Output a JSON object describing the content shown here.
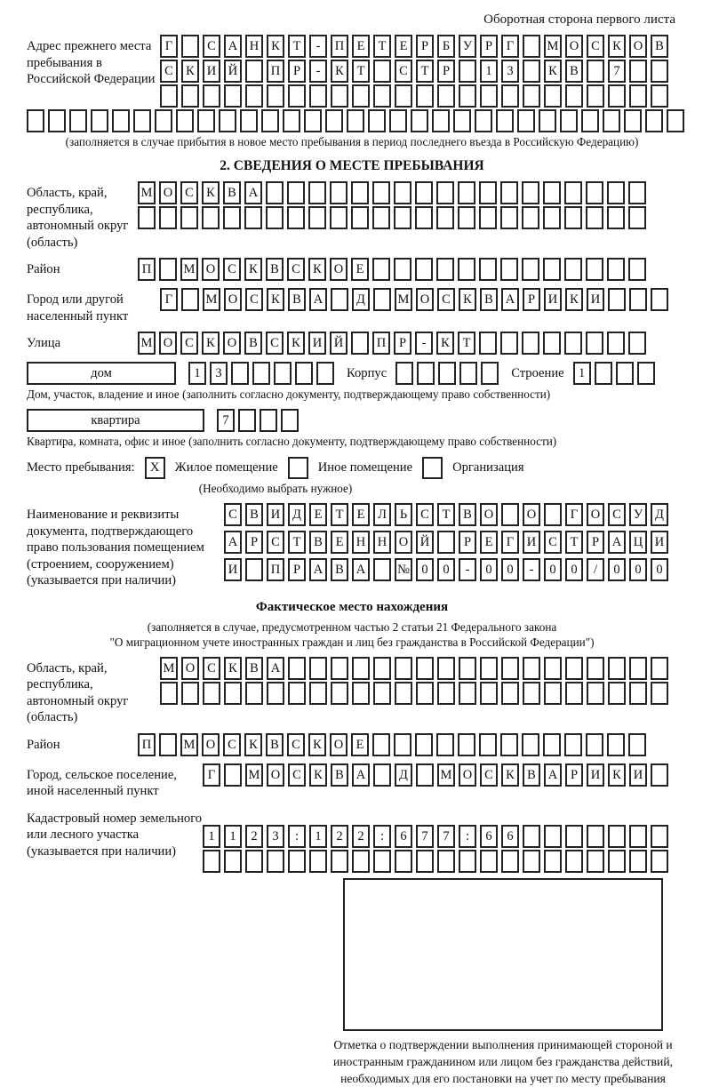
{
  "page": {
    "side_note": "Оборотная сторона первого листа"
  },
  "colors": {
    "line": "#222222",
    "text": "#111111",
    "background": "#ffffff"
  },
  "prev_address": {
    "label": "Адрес прежнего места пребывания в Российской Федерации",
    "rows": [
      {
        "len": 24,
        "text": "Г САНКТ-ПЕТЕРБУРГ МОСКОВ"
      },
      {
        "len": 24,
        "text": "СКИЙ ПР-КТ СТР 13 КВ 7"
      },
      {
        "len": 24,
        "text": ""
      },
      {
        "len": 31,
        "text": ""
      }
    ],
    "note": "(заполняется в случае прибытия в новое место пребывания в период последнего въезда в Российскую Федерацию)"
  },
  "section2": {
    "title": "2. СВЕДЕНИЯ О МЕСТЕ ПРЕБЫВАНИЯ",
    "region": {
      "label": "Область, край, республика, автономный округ (область)",
      "rows": [
        {
          "len": 24,
          "text": "МОСКВА"
        },
        {
          "len": 24,
          "text": ""
        }
      ]
    },
    "district": {
      "label": "Район",
      "rows": [
        {
          "len": 24,
          "text": "П МОСКВСКОЕ"
        }
      ]
    },
    "city": {
      "label": "Город или другой населенный пункт",
      "rows": [
        {
          "len": 24,
          "text": "Г МОСКВА Д МОСКВАРИКИ"
        }
      ]
    },
    "street": {
      "label": "Улица",
      "rows": [
        {
          "len": 24,
          "text": "МОСКОВСКИЙ ПР-КТ"
        }
      ]
    },
    "house": {
      "box_label": "дом",
      "cells": {
        "len": 7,
        "text": "13"
      },
      "korpus_label": "Корпус",
      "korpus_cells": {
        "len": 5,
        "text": ""
      },
      "stroenie_label": "Строение",
      "stroenie_cells": {
        "len": 4,
        "text": "1"
      }
    },
    "house_note": "Дом, участок, владение и иное (заполнить согласно документу, подтверждающему право собственности)",
    "flat": {
      "box_label": "квартира",
      "cells": {
        "len": 4,
        "text": "7"
      }
    },
    "flat_note": "Квартира, комната, офис и иное (заполнить согласно документу, подтверждающему право собственности)",
    "stay_type": {
      "label": "Место пребывания:",
      "options": [
        {
          "label": "Жилое помещение",
          "checked": true,
          "mark": "X"
        },
        {
          "label": "Иное помещение",
          "checked": false,
          "mark": ""
        },
        {
          "label": "Организация",
          "checked": false,
          "mark": ""
        }
      ],
      "note": "(Необходимо выбрать нужное)"
    },
    "document": {
      "label": "Наименование и реквизиты документа, подтверждающего право пользования помещением (строением, сооружением) (указывается при наличии)",
      "rows": [
        {
          "len": 21,
          "text": "СВИДЕТЕЛЬСТВО О ГОСУД"
        },
        {
          "len": 21,
          "text": "АРСТВЕННОЙ РЕГИСТРАЦИ"
        },
        {
          "len": 21,
          "text": "И ПРАВА №00-00-00/000"
        }
      ]
    }
  },
  "actual_location": {
    "title": "Фактическое место нахождения",
    "note_line1": "(заполняется в случае, предусмотренном частью 2 статьи 21 Федерального закона",
    "note_line2": "\"О миграционном учете иностранных граждан и лиц без гражданства в Российской Федерации\")",
    "region": {
      "label": "Область, край, республика, автономный округ (область)",
      "rows": [
        {
          "len": 24,
          "text": "МОСКВА"
        },
        {
          "len": 24,
          "text": ""
        }
      ]
    },
    "district": {
      "label": "Район",
      "rows": [
        {
          "len": 24,
          "text": "П МОСКВСКОЕ"
        }
      ]
    },
    "city": {
      "label": "Город, сельское поселение, иной населенный пункт",
      "rows": [
        {
          "len": 22,
          "text": "Г МОСКВА Д МОСКВАРИКИ"
        }
      ]
    },
    "cadastre": {
      "label": "Кадастровый номер земельного или лесного участка (указывается при наличии)",
      "rows": [
        {
          "len": 22,
          "text": "1123:122:677:66"
        },
        {
          "len": 22,
          "text": ""
        }
      ]
    }
  },
  "stamp": {
    "caption": "Отметка о подтверждении выполнения принимающей стороной и иностранным гражданином или лицом без гражданства действий, необходимых для его постановки на учет по месту пребывания"
  }
}
